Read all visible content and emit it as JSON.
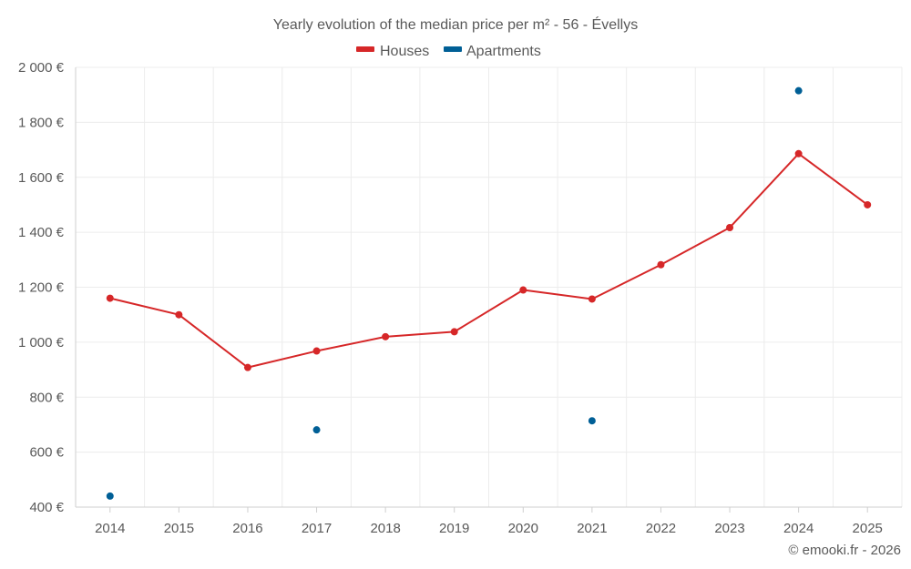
{
  "chart_data": {
    "type": "line",
    "title": "Yearly evolution of the median price per m² - 56 - Évellys",
    "categories": [
      "2014",
      "2015",
      "2016",
      "2017",
      "2018",
      "2019",
      "2020",
      "2021",
      "2022",
      "2023",
      "2024",
      "2025"
    ],
    "series": [
      {
        "name": "Houses",
        "color": "#d62728",
        "style": "line-with-markers",
        "values": [
          1160,
          1100,
          908,
          968,
          1020,
          1038,
          1190,
          1157,
          1282,
          1417,
          1686,
          1500
        ]
      },
      {
        "name": "Apartments",
        "color": "#005f96",
        "style": "markers-only",
        "values": [
          440,
          null,
          null,
          681,
          null,
          null,
          null,
          714,
          null,
          null,
          1915,
          null
        ]
      }
    ],
    "y_ticks": [
      400,
      600,
      800,
      1000,
      1200,
      1400,
      1600,
      1800,
      2000
    ],
    "y_tick_labels": [
      "400 €",
      "600 €",
      "800 €",
      "1 000 €",
      "1 200 €",
      "1 400 €",
      "1 600 €",
      "1 800 €",
      "2 000 €"
    ],
    "ylim": [
      400,
      2000
    ],
    "xlabel": "",
    "ylabel": "",
    "grid": true,
    "legend_position": "top-center"
  },
  "credit": "© emooki.fr - 2026"
}
